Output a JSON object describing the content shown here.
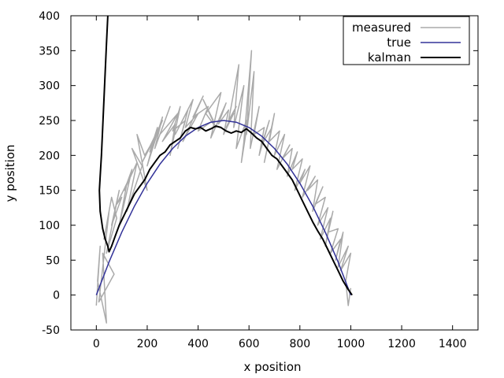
{
  "chart_data": {
    "type": "line",
    "title": "",
    "xlabel": "x position",
    "ylabel": "y position",
    "xlim": [
      -100,
      1500
    ],
    "ylim": [
      -50,
      400
    ],
    "xticks": [
      0,
      200,
      400,
      600,
      800,
      1000,
      1200,
      1400
    ],
    "yticks": [
      -50,
      0,
      50,
      100,
      150,
      200,
      250,
      300,
      350,
      400
    ],
    "legend_position": "top-right",
    "grid": false,
    "series": [
      {
        "name": "measured",
        "color": "#aaaaaa",
        "x": [
          0,
          15,
          5,
          40,
          25,
          70,
          10,
          50,
          30,
          60,
          80,
          40,
          90,
          60,
          100,
          80,
          120,
          90,
          140,
          110,
          160,
          120,
          180,
          140,
          200,
          160,
          190,
          230,
          180,
          260,
          210,
          240,
          200,
          260,
          230,
          290,
          250,
          320,
          260,
          310,
          290,
          330,
          300,
          350,
          320,
          360,
          310,
          380,
          350,
          400,
          340,
          420,
          380,
          440,
          400,
          460,
          420,
          470,
          430,
          490,
          450,
          510,
          480,
          520,
          500,
          540,
          510,
          550,
          520,
          560,
          540,
          580,
          550,
          590,
          570,
          600,
          580,
          610,
          590,
          620,
          605,
          640,
          620,
          660,
          640,
          680,
          650,
          690,
          660,
          700,
          680,
          720,
          700,
          740,
          710,
          760,
          730,
          770,
          750,
          790,
          770,
          810,
          780,
          820,
          800,
          840,
          810,
          860,
          830,
          870,
          850,
          890,
          860,
          900,
          870,
          910,
          880,
          920,
          900,
          930,
          910,
          950,
          920,
          960,
          940,
          970,
          950,
          990,
          960,
          1000,
          980,
          990,
          1000
        ],
        "y": [
          -15,
          70,
          20,
          -40,
          60,
          30,
          -10,
          120,
          80,
          140,
          110,
          60,
          150,
          100,
          140,
          130,
          160,
          100,
          180,
          150,
          190,
          120,
          185,
          210,
          150,
          230,
          200,
          225,
          190,
          250,
          205,
          240,
          185,
          255,
          210,
          270,
          230,
          260,
          220,
          245,
          200,
          270,
          235,
          250,
          210,
          265,
          230,
          280,
          240,
          260,
          220,
          285,
          255,
          270,
          235,
          250,
          280,
          240,
          260,
          290,
          225,
          275,
          245,
          265,
          230,
          260,
          240,
          270,
          250,
          330,
          240,
          300,
          210,
          250,
          190,
          260,
          220,
          350,
          230,
          320,
          210,
          270,
          230,
          240,
          200,
          250,
          215,
          240,
          190,
          260,
          220,
          235,
          200,
          230,
          180,
          215,
          195,
          210,
          170,
          205,
          180,
          195,
          150,
          180,
          160,
          185,
          140,
          170,
          150,
          165,
          120,
          155,
          130,
          140,
          100,
          125,
          80,
          110,
          70,
          120,
          90,
          95,
          60,
          80,
          50,
          90,
          40,
          70,
          35,
          60,
          20,
          -15,
          10
        ]
      },
      {
        "name": "true",
        "color": "#333399",
        "x": [
          0,
          50,
          100,
          150,
          200,
          250,
          300,
          350,
          400,
          450,
          500,
          550,
          600,
          650,
          700,
          750,
          800,
          850,
          900,
          950,
          1000
        ],
        "y": [
          0,
          47.5,
          90,
          127.5,
          160,
          187.5,
          210,
          227.5,
          240,
          247.5,
          250,
          247.5,
          240,
          227.5,
          210,
          187.5,
          160,
          127.5,
          90,
          47.5,
          0
        ]
      },
      {
        "name": "kalman",
        "color": "#000000",
        "x": [
          45,
          40,
          35,
          30,
          25,
          20,
          15,
          12,
          15,
          25,
          35,
          45,
          50,
          60,
          75,
          90,
          110,
          130,
          150,
          170,
          190,
          210,
          230,
          250,
          270,
          290,
          310,
          330,
          350,
          370,
          390,
          410,
          430,
          450,
          470,
          490,
          510,
          530,
          550,
          570,
          590,
          610,
          630,
          650,
          670,
          690,
          710,
          730,
          750,
          770,
          790,
          810,
          830,
          850,
          870,
          890,
          910,
          930,
          950,
          970,
          990,
          1005
        ],
        "y": [
          400,
          360,
          320,
          280,
          240,
          200,
          170,
          150,
          120,
          95,
          80,
          70,
          62,
          70,
          85,
          100,
          115,
          130,
          145,
          155,
          165,
          180,
          190,
          200,
          205,
          215,
          220,
          225,
          235,
          240,
          238,
          240,
          235,
          238,
          242,
          240,
          235,
          232,
          235,
          233,
          238,
          232,
          225,
          220,
          210,
          200,
          195,
          185,
          175,
          165,
          150,
          135,
          120,
          105,
          92,
          80,
          65,
          50,
          35,
          20,
          8,
          0
        ]
      }
    ]
  }
}
